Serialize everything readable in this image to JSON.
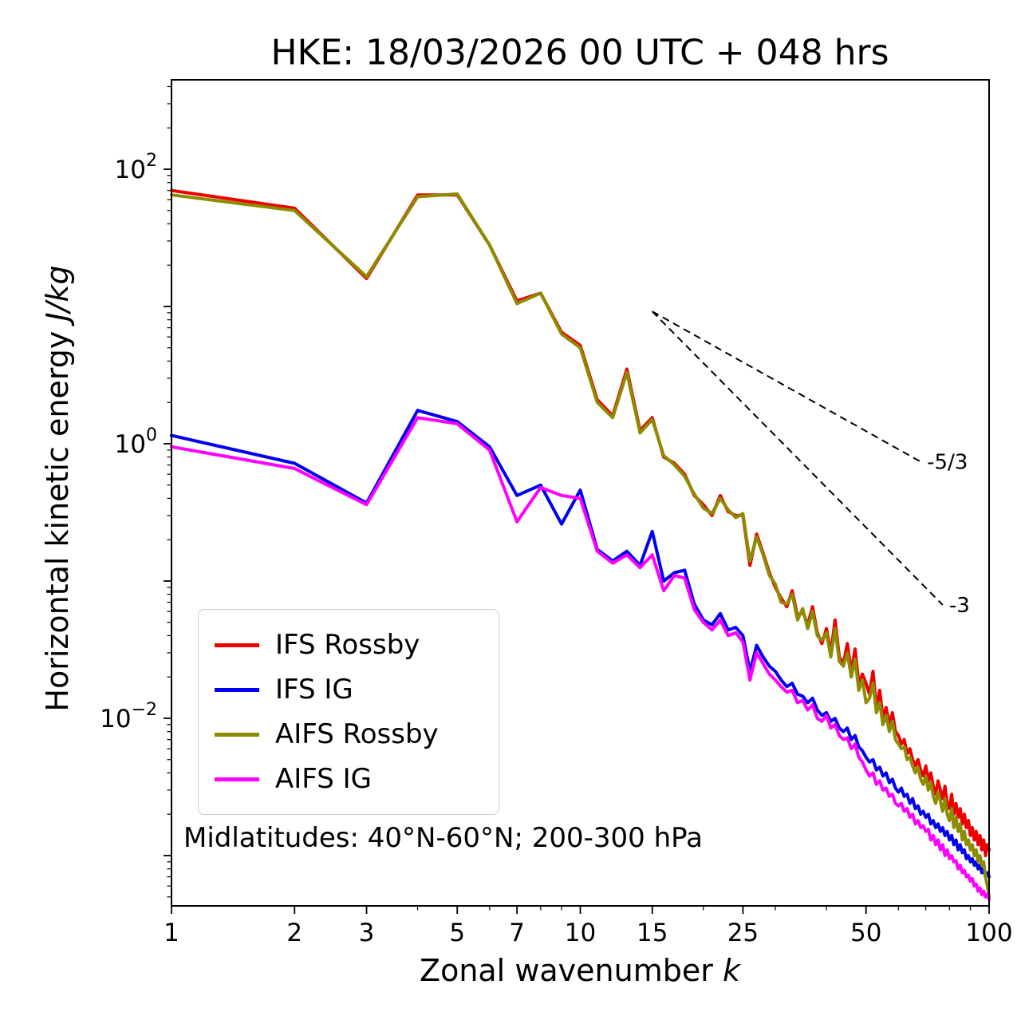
{
  "chart_data": {
    "type": "line",
    "title": "HKE: 18/03/2026 00 UTC + 048 hrs",
    "xlabel": "Zonal wavenumber ",
    "xlabel_math": "k",
    "ylabel": "Horizontal kinetic energy ",
    "ylabel_math": "J/kg",
    "annotation": "Midlatitudes: 40°N-60°N; 200-300 hPa",
    "xscale": "log",
    "yscale": "log",
    "grid": false,
    "legend_position": "lower left",
    "xlim": [
      1,
      100
    ],
    "ylim": [
      0.00043,
      448
    ],
    "xticks": [
      1,
      2,
      3,
      5,
      7,
      10,
      15,
      25,
      50,
      100
    ],
    "xtick_labels": [
      "1",
      "2",
      "3",
      "5",
      "7",
      "10",
      "15",
      "25",
      "50",
      "100"
    ],
    "x_minor_ticks": [
      4,
      6,
      8,
      9,
      20,
      30,
      40,
      60,
      70,
      80,
      90
    ],
    "yticks": [
      {
        "value": 100,
        "exp": "2"
      },
      {
        "value": 1,
        "exp": "0"
      },
      {
        "value": 0.01,
        "exp": "−2"
      }
    ],
    "x": [
      1,
      2,
      3,
      4,
      5,
      6,
      7,
      8,
      9,
      10,
      11,
      12,
      13,
      14,
      15,
      16,
      17,
      18,
      19,
      20,
      21,
      22,
      23,
      24,
      25,
      26,
      27,
      28,
      29,
      30,
      31,
      32,
      33,
      34,
      35,
      36,
      37,
      38,
      39,
      40,
      41,
      42,
      43,
      44,
      45,
      46,
      47,
      48,
      49,
      50,
      51,
      52,
      53,
      54,
      55,
      56,
      57,
      58,
      59,
      60,
      61,
      62,
      63,
      64,
      65,
      66,
      67,
      68,
      69,
      70,
      71,
      72,
      73,
      74,
      75,
      76,
      77,
      78,
      79,
      80,
      81,
      82,
      83,
      84,
      85,
      86,
      87,
      88,
      89,
      90,
      91,
      92,
      93,
      94,
      95,
      96,
      97,
      98,
      99,
      100
    ],
    "series": [
      {
        "name": "IFS Rossby",
        "color": "#ee0000",
        "values": [
          70,
          52,
          16,
          65,
          65,
          28,
          11,
          12.5,
          6.5,
          5.2,
          2.1,
          1.6,
          3.5,
          1.25,
          1.55,
          0.8,
          0.72,
          0.6,
          0.42,
          0.36,
          0.3,
          0.42,
          0.32,
          0.3,
          0.3,
          0.13,
          0.22,
          0.16,
          0.115,
          0.09,
          0.075,
          0.065,
          0.085,
          0.055,
          0.06,
          0.048,
          0.065,
          0.042,
          0.035,
          0.045,
          0.03,
          0.052,
          0.028,
          0.025,
          0.035,
          0.022,
          0.032,
          0.018,
          0.021,
          0.018,
          0.015,
          0.022,
          0.012,
          0.016,
          0.01,
          0.012,
          0.009,
          0.011,
          0.008,
          0.0075,
          0.0065,
          0.007,
          0.0055,
          0.006,
          0.005,
          0.0045,
          0.005,
          0.0042,
          0.0038,
          0.0045,
          0.0035,
          0.004,
          0.0032,
          0.0028,
          0.0035,
          0.003,
          0.0026,
          0.0032,
          0.0024,
          0.0022,
          0.0028,
          0.002,
          0.0024,
          0.0019,
          0.0022,
          0.0017,
          0.002,
          0.0016,
          0.0018,
          0.0014,
          0.0016,
          0.0013,
          0.0015,
          0.0012,
          0.0014,
          0.0011,
          0.0013,
          0.001,
          0.0012,
          0.0011
        ]
      },
      {
        "name": "IFS IG",
        "color": "#0000ee",
        "values": [
          1.15,
          0.72,
          0.37,
          1.75,
          1.45,
          0.95,
          0.42,
          0.5,
          0.26,
          0.46,
          0.17,
          0.14,
          0.165,
          0.13,
          0.23,
          0.1,
          0.115,
          0.12,
          0.068,
          0.052,
          0.048,
          0.058,
          0.044,
          0.046,
          0.04,
          0.022,
          0.034,
          0.028,
          0.024,
          0.022,
          0.019,
          0.017,
          0.018,
          0.015,
          0.0145,
          0.013,
          0.014,
          0.0115,
          0.0105,
          0.011,
          0.0095,
          0.01,
          0.0085,
          0.008,
          0.0085,
          0.007,
          0.0075,
          0.0062,
          0.0058,
          0.0052,
          0.0048,
          0.005,
          0.0042,
          0.0044,
          0.0038,
          0.004,
          0.0034,
          0.0036,
          0.0031,
          0.0029,
          0.0031,
          0.0027,
          0.0028,
          0.0024,
          0.0026,
          0.0022,
          0.0023,
          0.002,
          0.0021,
          0.0019,
          0.002,
          0.0017,
          0.0018,
          0.0016,
          0.0017,
          0.0015,
          0.0016,
          0.0014,
          0.0015,
          0.0013,
          0.0014,
          0.0012,
          0.0013,
          0.0011,
          0.0012,
          0.00105,
          0.0011,
          0.00095,
          0.001,
          0.0009,
          0.00095,
          0.00085,
          0.0009,
          0.0008,
          0.00085,
          0.00075,
          0.0008,
          0.0007,
          0.00075,
          0.0007
        ]
      },
      {
        "name": "AIFS Rossby",
        "color": "#8c8c00",
        "values": [
          65,
          50,
          16.5,
          63,
          66,
          28,
          10.5,
          12.5,
          6.3,
          5.0,
          2.0,
          1.55,
          3.3,
          1.2,
          1.5,
          0.82,
          0.7,
          0.58,
          0.43,
          0.34,
          0.31,
          0.4,
          0.33,
          0.29,
          0.31,
          0.14,
          0.21,
          0.155,
          0.11,
          0.095,
          0.07,
          0.068,
          0.08,
          0.052,
          0.063,
          0.045,
          0.06,
          0.04,
          0.037,
          0.042,
          0.028,
          0.045,
          0.026,
          0.024,
          0.03,
          0.02,
          0.027,
          0.016,
          0.019,
          0.013,
          0.014,
          0.018,
          0.011,
          0.013,
          0.009,
          0.0105,
          0.008,
          0.0095,
          0.007,
          0.0065,
          0.006,
          0.0062,
          0.005,
          0.0052,
          0.0045,
          0.004,
          0.0044,
          0.0036,
          0.0033,
          0.0038,
          0.003,
          0.0034,
          0.0027,
          0.0024,
          0.0029,
          0.0025,
          0.0021,
          0.0026,
          0.002,
          0.0018,
          0.0022,
          0.0016,
          0.0019,
          0.0015,
          0.0017,
          0.0013,
          0.0015,
          0.0012,
          0.0013,
          0.0011,
          0.0012,
          0.001,
          0.0011,
          0.0009,
          0.001,
          0.00085,
          0.0009,
          0.0007,
          0.0006,
          0.0005
        ]
      },
      {
        "name": "AIFS IG",
        "color": "#ff00ff",
        "values": [
          0.95,
          0.66,
          0.36,
          1.55,
          1.4,
          0.9,
          0.27,
          0.48,
          0.42,
          0.4,
          0.165,
          0.135,
          0.155,
          0.125,
          0.155,
          0.085,
          0.11,
          0.105,
          0.062,
          0.05,
          0.044,
          0.052,
          0.04,
          0.042,
          0.036,
          0.019,
          0.03,
          0.025,
          0.021,
          0.019,
          0.017,
          0.0155,
          0.016,
          0.013,
          0.0135,
          0.0115,
          0.0125,
          0.01,
          0.0095,
          0.0105,
          0.0085,
          0.009,
          0.0075,
          0.007,
          0.0072,
          0.006,
          0.0065,
          0.0052,
          0.0048,
          0.0042,
          0.0038,
          0.004,
          0.0033,
          0.0035,
          0.003,
          0.0031,
          0.0027,
          0.0028,
          0.0024,
          0.0023,
          0.0024,
          0.0021,
          0.0022,
          0.0019,
          0.002,
          0.0017,
          0.0018,
          0.0016,
          0.00165,
          0.0015,
          0.00155,
          0.0013,
          0.0014,
          0.0012,
          0.0013,
          0.0011,
          0.0012,
          0.001,
          0.0011,
          0.00095,
          0.001,
          0.0009,
          0.00092,
          0.0008,
          0.00085,
          0.00075,
          0.00078,
          0.0007,
          0.00072,
          0.00065,
          0.00068,
          0.0006,
          0.00062,
          0.00055,
          0.00058,
          0.00052,
          0.00055,
          0.0005,
          0.00052,
          0.00048
        ]
      }
    ],
    "reference_lines": [
      {
        "label": "-5/3",
        "slope": "-5/3",
        "x": [
          15,
          68
        ],
        "y": [
          9.2,
          0.74
        ]
      },
      {
        "label": "-3",
        "slope": "-3",
        "x": [
          15,
          77
        ],
        "y": [
          9.2,
          0.067
        ]
      }
    ]
  }
}
